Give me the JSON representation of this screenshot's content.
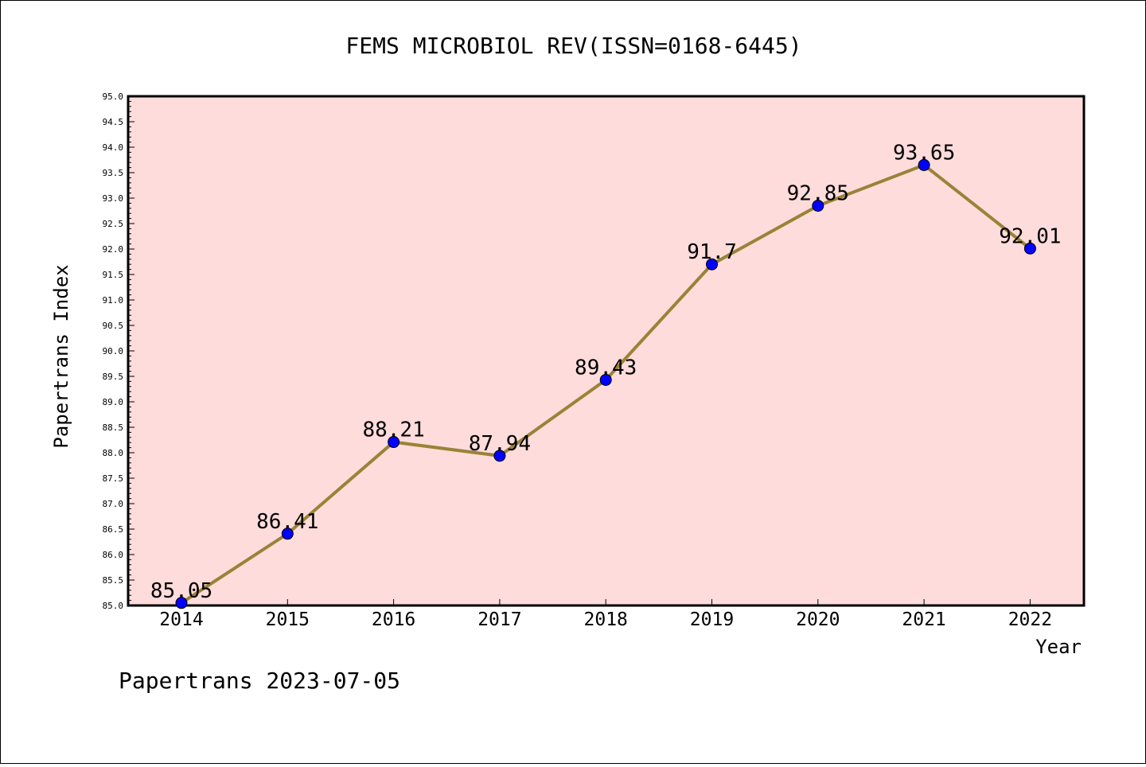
{
  "chart_data": {
    "type": "line",
    "title": "FEMS MICROBIOL REV(ISSN=0168-6445)",
    "xlabel": "Year",
    "ylabel": "Papertrans Index",
    "categories": [
      "2014",
      "2015",
      "2016",
      "2017",
      "2018",
      "2019",
      "2020",
      "2021",
      "2022"
    ],
    "series": [
      {
        "name": "Papertrans Index",
        "values": [
          85.05,
          86.41,
          88.21,
          87.94,
          89.43,
          91.7,
          92.85,
          93.65,
          92.01
        ]
      }
    ],
    "data_labels": [
      "85.05",
      "86.41",
      "88.21",
      "87.94",
      "89.43",
      "91.7",
      "92.85",
      "93.65",
      "92.01"
    ],
    "ylim": [
      85.0,
      95.0
    ],
    "yticks": [
      "85.0",
      "85.5",
      "86.0",
      "86.5",
      "87.0",
      "87.5",
      "88.0",
      "88.5",
      "89.0",
      "89.5",
      "90.0",
      "90.5",
      "91.0",
      "91.5",
      "92.0",
      "92.5",
      "93.0",
      "93.5",
      "94.0",
      "94.5",
      "95.0"
    ],
    "grid": false,
    "colors": {
      "plot_bg": "#fddcdb",
      "line": "#9a8237",
      "marker": "#0000ff"
    },
    "footer": "Papertrans 2023-07-05"
  }
}
